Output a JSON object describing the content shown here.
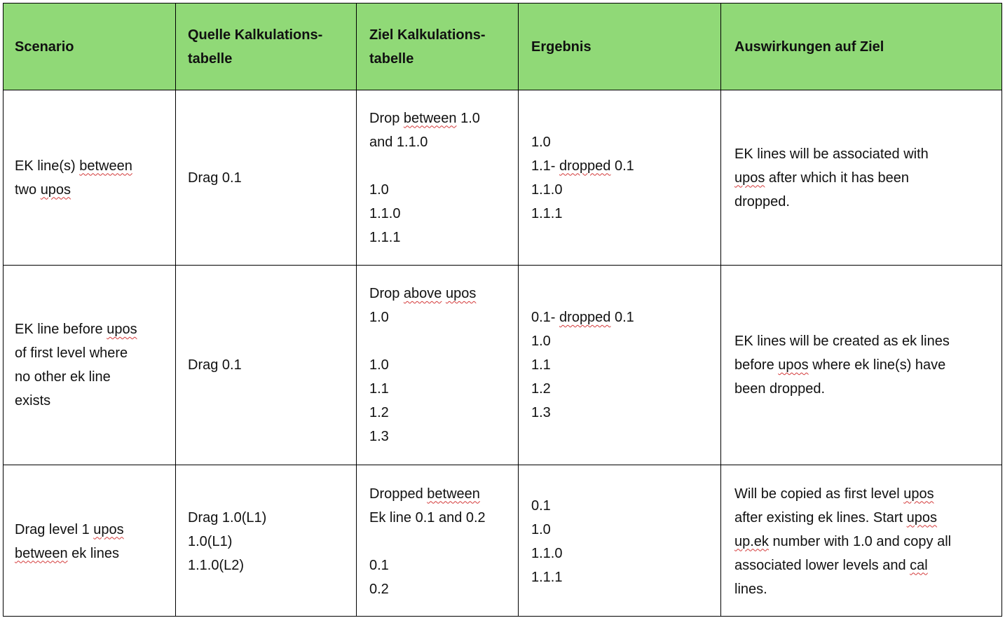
{
  "table": {
    "headers": [
      [
        "Scenario"
      ],
      [
        "Quelle Kalkulations-",
        "tabelle"
      ],
      [
        "Ziel Kalkulations-",
        "tabelle"
      ],
      [
        "Ergebnis"
      ],
      [
        "Auswirkungen auf Ziel"
      ]
    ],
    "rows": [
      {
        "scenario": [
          "EK line(s) between",
          "two upos"
        ],
        "quelle": [
          "Drag 0.1"
        ],
        "ziel": [
          "Drop between 1.0",
          "and 1.1.0",
          "",
          "1.0",
          "1.1.0",
          "1.1.1"
        ],
        "ergebnis": [
          "1.0",
          "1.1- dropped 0.1",
          "1.1.0",
          "1.1.1"
        ],
        "auswirkungen": [
          "EK lines will be associated with",
          "upos after which it has been",
          "dropped."
        ]
      },
      {
        "scenario": [
          "EK line before upos",
          "of first level where",
          "no other ek line",
          "exists"
        ],
        "quelle": [
          "Drag 0.1"
        ],
        "ziel": [
          "Drop above upos",
          "1.0",
          "",
          "1.0",
          "1.1",
          "1.2",
          "1.3"
        ],
        "ergebnis": [
          "0.1- dropped 0.1",
          "1.0",
          "1.1",
          "1.2",
          "1.3"
        ],
        "auswirkungen": [
          "EK lines will be created as ek lines",
          "before upos where ek line(s) have",
          "been dropped."
        ]
      },
      {
        "scenario": [
          "Drag level 1 upos",
          "between ek lines"
        ],
        "quelle": [
          "Drag 1.0(L1)",
          "1.0(L1)",
          "1.1.0(L2)"
        ],
        "ziel": [
          "Dropped between",
          "Ek line 0.1 and 0.2",
          "",
          "0.1",
          "0.2"
        ],
        "ergebnis": [
          "0.1",
          "1.0",
          "1.1.0",
          "1.1.1"
        ],
        "auswirkungen": [
          "Will be copied as first level upos",
          "after existing ek lines. Start upos",
          "up.ek number with 1.0 and copy all",
          "associated lower levels and cal",
          "lines."
        ]
      }
    ]
  },
  "colors": {
    "header_bg": "#90d977",
    "border": "#000000",
    "spell_underline": "#d43a3a"
  }
}
